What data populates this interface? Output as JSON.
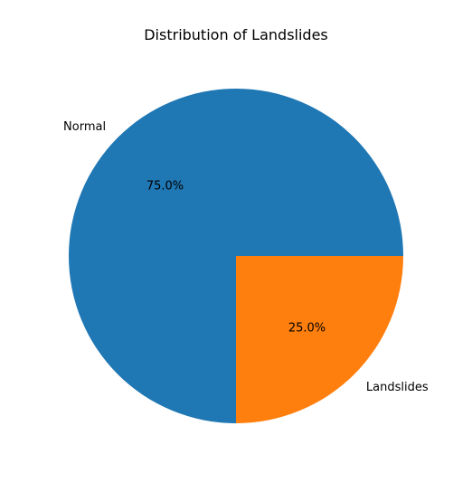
{
  "chart_data": {
    "type": "pie",
    "title": "Distribution of Landslides",
    "slices": [
      {
        "label": "Normal",
        "value": 75.0,
        "pct_label": "75.0%",
        "color": "#1f77b4"
      },
      {
        "label": "Landslides",
        "value": 25.0,
        "pct_label": "25.0%",
        "color": "#ff7f0e"
      }
    ],
    "start_angle_deg": 0,
    "direction": "counterclockwise",
    "legend": "none"
  }
}
